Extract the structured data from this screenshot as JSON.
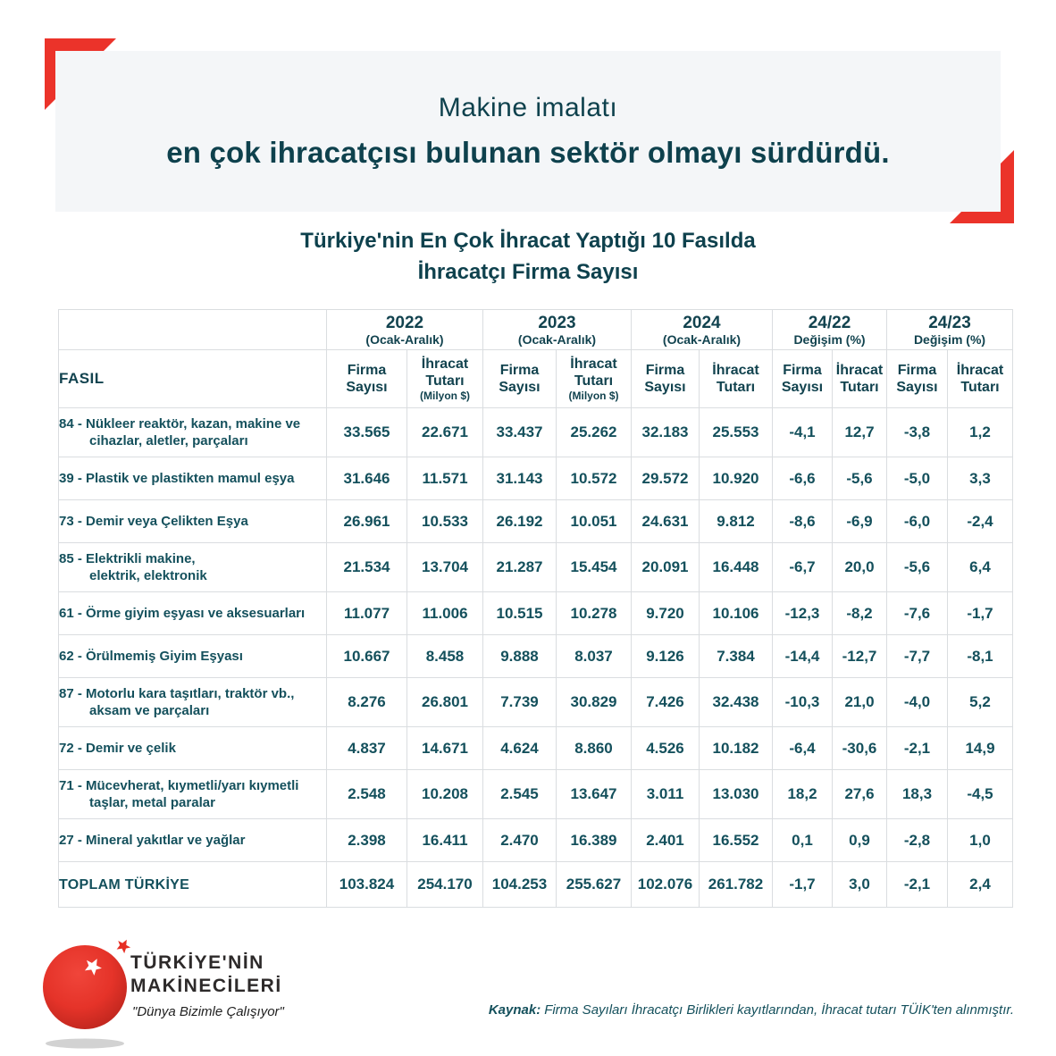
{
  "header": {
    "title_line1": "Makine imalatı",
    "title_line2": "en çok ihracatçısı bulunan sektör olmayı sürdürdü."
  },
  "subtitle": {
    "line1": "Türkiye'nin En Çok İhracat Yaptığı 10 Fasılda",
    "line2": "İhracatçı Firma Sayısı"
  },
  "table": {
    "fasil_header": "FASIL",
    "groups": [
      {
        "label": "2022",
        "sub": "(Ocak-Aralık)"
      },
      {
        "label": "2023",
        "sub": "(Ocak-Aralık)"
      },
      {
        "label": "2024",
        "sub": "(Ocak-Aralık)"
      },
      {
        "label": "24/22",
        "sub": "Değişim (%)"
      },
      {
        "label": "24/23",
        "sub": "Değişim (%)"
      }
    ],
    "columns": [
      {
        "l1": "Firma",
        "l2": "Sayısı",
        "note": ""
      },
      {
        "l1": "İhracat",
        "l2": "Tutarı",
        "note": "(Milyon $)"
      },
      {
        "l1": "Firma",
        "l2": "Sayısı",
        "note": ""
      },
      {
        "l1": "İhracat",
        "l2": "Tutarı",
        "note": "(Milyon $)"
      },
      {
        "l1": "Firma",
        "l2": "Sayısı",
        "note": ""
      },
      {
        "l1": "İhracat",
        "l2": "Tutarı",
        "note": ""
      },
      {
        "l1": "Firma",
        "l2": "Sayısı",
        "note": ""
      },
      {
        "l1": "İhracat",
        "l2": "Tutarı",
        "note": ""
      },
      {
        "l1": "Firma",
        "l2": "Sayısı",
        "note": ""
      },
      {
        "l1": "İhracat",
        "l2": "Tutarı",
        "note": ""
      }
    ],
    "rows": [
      {
        "label_lines": [
          "84 - Nükleer reaktör, kazan, makine ve",
          "cihazlar, aletler, parçaları"
        ],
        "values": [
          "33.565",
          "22.671",
          "33.437",
          "25.262",
          "32.183",
          "25.553",
          "-4,1",
          "12,7",
          "-3,8",
          "1,2"
        ]
      },
      {
        "label_lines": [
          "39 - Plastik ve plastikten mamul eşya"
        ],
        "values": [
          "31.646",
          "11.571",
          "31.143",
          "10.572",
          "29.572",
          "10.920",
          "-6,6",
          "-5,6",
          "-5,0",
          "3,3"
        ]
      },
      {
        "label_lines": [
          "73 - Demir veya Çelikten Eşya"
        ],
        "values": [
          "26.961",
          "10.533",
          "26.192",
          "10.051",
          "24.631",
          "9.812",
          "-8,6",
          "-6,9",
          "-6,0",
          "-2,4"
        ]
      },
      {
        "label_lines": [
          "85 - Elektrikli makine,",
          "elektrik, elektronik"
        ],
        "values": [
          "21.534",
          "13.704",
          "21.287",
          "15.454",
          "20.091",
          "16.448",
          "-6,7",
          "20,0",
          "-5,6",
          "6,4"
        ]
      },
      {
        "label_lines": [
          "61 - Örme giyim eşyası ve aksesuarları"
        ],
        "values": [
          "11.077",
          "11.006",
          "10.515",
          "10.278",
          "9.720",
          "10.106",
          "-12,3",
          "-8,2",
          "-7,6",
          "-1,7"
        ]
      },
      {
        "label_lines": [
          "62 - Örülmemiş Giyim Eşyası"
        ],
        "values": [
          "10.667",
          "8.458",
          "9.888",
          "8.037",
          "9.126",
          "7.384",
          "-14,4",
          "-12,7",
          "-7,7",
          "-8,1"
        ]
      },
      {
        "label_lines": [
          "87 - Motorlu kara taşıtları, traktör vb.,",
          "aksam ve parçaları"
        ],
        "values": [
          "8.276",
          "26.801",
          "7.739",
          "30.829",
          "7.426",
          "32.438",
          "-10,3",
          "21,0",
          "-4,0",
          "5,2"
        ]
      },
      {
        "label_lines": [
          "72 - Demir ve çelik"
        ],
        "values": [
          "4.837",
          "14.671",
          "4.624",
          "8.860",
          "4.526",
          "10.182",
          "-6,4",
          "-30,6",
          "-2,1",
          "14,9"
        ]
      },
      {
        "label_lines": [
          "71 - Mücevherat, kıymetli/yarı kıymetli",
          "taşlar, metal paralar"
        ],
        "values": [
          "2.548",
          "10.208",
          "2.545",
          "13.647",
          "3.011",
          "13.030",
          "18,2",
          "27,6",
          "18,3",
          "-4,5"
        ]
      },
      {
        "label_lines": [
          "27 - Mineral yakıtlar ve yağlar"
        ],
        "values": [
          "2.398",
          "16.411",
          "2.470",
          "16.389",
          "2.401",
          "16.552",
          "0,1",
          "0,9",
          "-2,8",
          "1,0"
        ]
      }
    ],
    "total": {
      "label": "TOPLAM TÜRKİYE",
      "values": [
        "103.824",
        "254.170",
        "104.253",
        "255.627",
        "102.076",
        "261.782",
        "-1,7",
        "3,0",
        "-2,1",
        "2,4"
      ]
    }
  },
  "footer": {
    "brand_line1": "TÜRKİYE'NİN",
    "brand_line2": "MAKİNECİLERİ",
    "brand_tagline": "\"Dünya Bizimle Çalışıyor\"",
    "source_label": "Kaynak:",
    "source_text": "Firma Sayıları İhracatçı Birlikleri kayıtlarından, İhracat tutarı TÜİK'ten alınmıştır."
  },
  "colors": {
    "accent_red": "#eb332a",
    "teal_dark": "#0e414d",
    "teal_table": "#14505c",
    "panel_gray": "#f4f6f8",
    "border_gray": "#dadde0"
  }
}
